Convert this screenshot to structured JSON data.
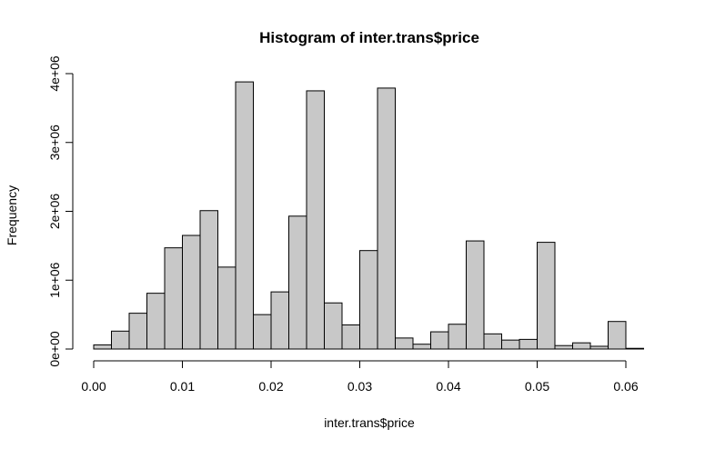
{
  "chart_data": {
    "type": "bar",
    "title": "Histogram of inter.trans$price",
    "xlabel": "inter.trans$price",
    "ylabel": "Frequency",
    "bin_width": 0.002,
    "x_start": 0.0,
    "xlim": [
      0.0,
      0.06
    ],
    "ylim": [
      0,
      4000000
    ],
    "x_ticks": [
      {
        "value": 0.0,
        "label": "0.00"
      },
      {
        "value": 0.01,
        "label": "0.01"
      },
      {
        "value": 0.02,
        "label": "0.02"
      },
      {
        "value": 0.03,
        "label": "0.03"
      },
      {
        "value": 0.04,
        "label": "0.04"
      },
      {
        "value": 0.05,
        "label": "0.05"
      },
      {
        "value": 0.06,
        "label": "0.06"
      }
    ],
    "y_ticks": [
      {
        "value": 0,
        "label": "0e+00"
      },
      {
        "value": 1000000,
        "label": "1e+06"
      },
      {
        "value": 2000000,
        "label": "2e+06"
      },
      {
        "value": 3000000,
        "label": "3e+06"
      },
      {
        "value": 4000000,
        "label": "4e+06"
      }
    ],
    "values": [
      60000,
      260000,
      520000,
      810000,
      1470000,
      1650000,
      2010000,
      1190000,
      3880000,
      500000,
      830000,
      1930000,
      3750000,
      670000,
      350000,
      1430000,
      3790000,
      160000,
      70000,
      250000,
      360000,
      1570000,
      220000,
      130000,
      140000,
      1550000,
      50000,
      90000,
      40000,
      400000,
      10000
    ],
    "grid": false,
    "legend": "none"
  }
}
